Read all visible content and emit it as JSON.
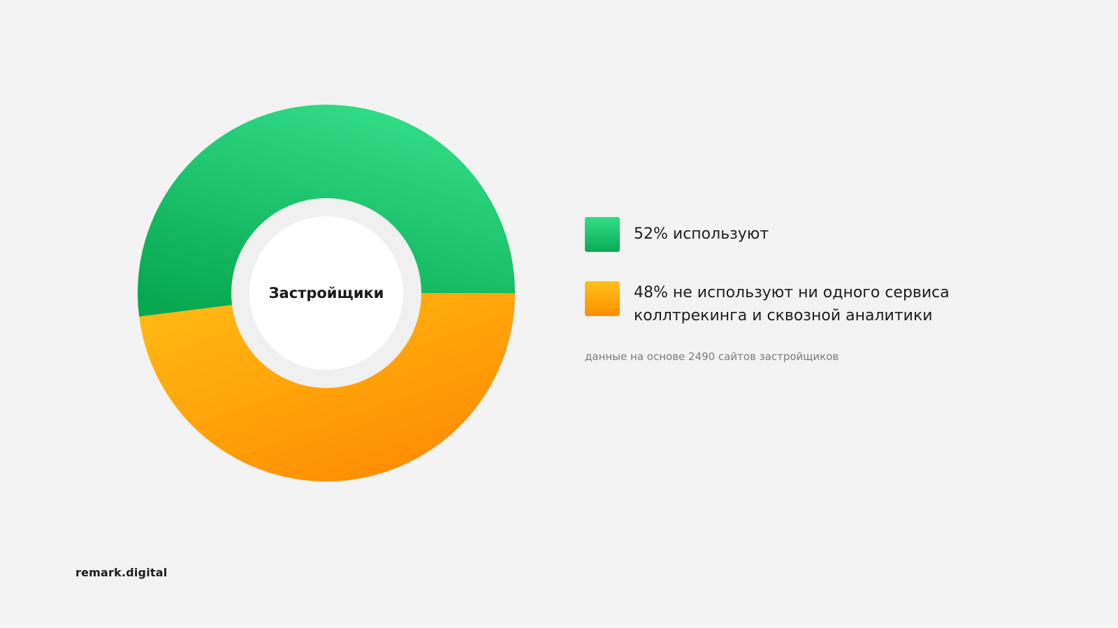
{
  "chart_data": {
    "type": "pie",
    "center_label": "Застройщики",
    "slices": [
      {
        "label_line1": "52% используют",
        "label_line2": "",
        "value": 52,
        "color_top": "#34dd87",
        "color_bottom": "#0aab56"
      },
      {
        "label_line1": "48% не используют ни одного сервиса",
        "label_line2": "коллтрекинга и сквозной аналитики",
        "value": 48,
        "color_top": "#ffc21c",
        "color_bottom": "#ff8f00"
      }
    ],
    "note": "данные на основе 2490 сайтов застройщиков",
    "legend_position": "right"
  },
  "brand": "remark.digital"
}
